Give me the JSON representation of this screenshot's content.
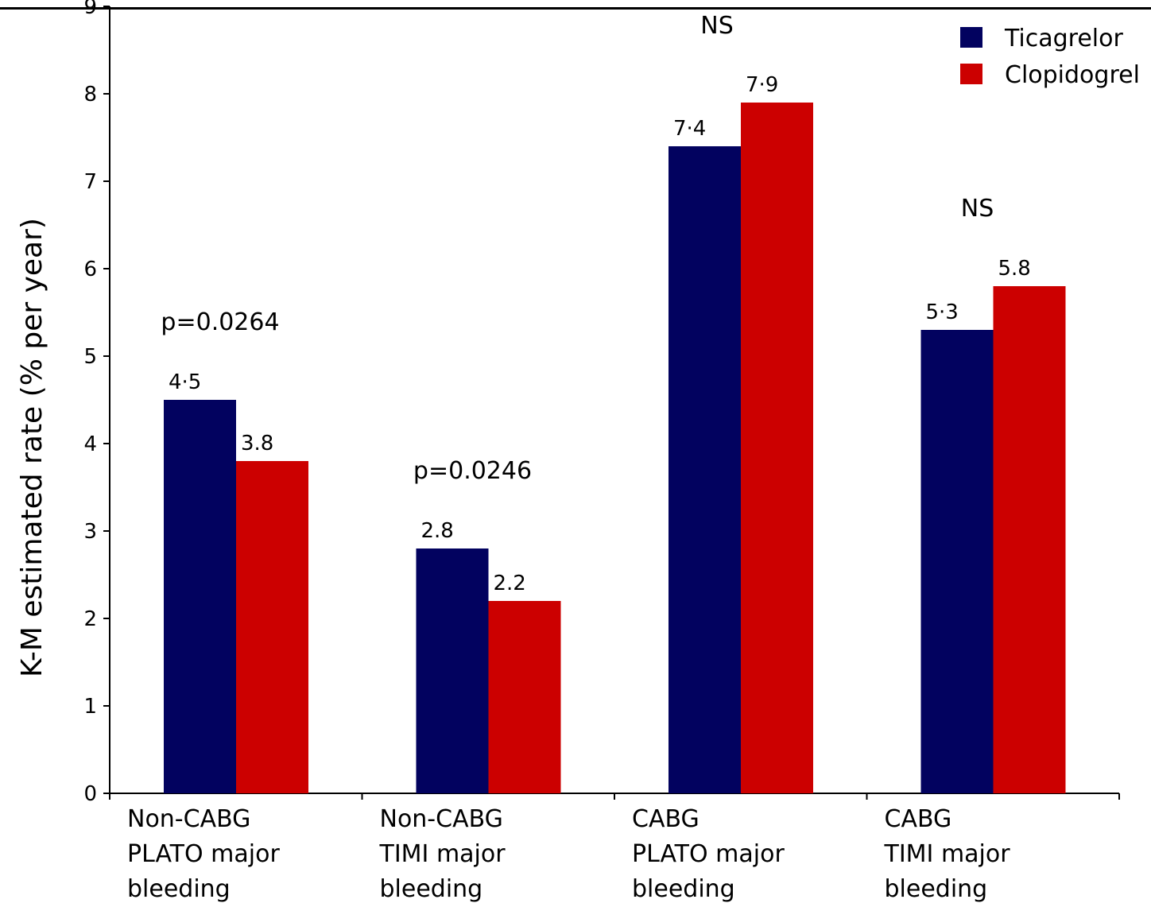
{
  "chart_data": {
    "type": "bar",
    "ylabel": "K-M estimated rate  (% per year)",
    "ylim": [
      0,
      9
    ],
    "yticks": [
      "0",
      "1",
      "2",
      "3",
      "4",
      "5",
      "6",
      "7",
      "8",
      "9"
    ],
    "categories": [
      [
        "Non-CABG",
        "PLATO major",
        "bleeding"
      ],
      [
        "Non-CABG",
        "TIMI major",
        "bleeding"
      ],
      [
        "CABG",
        "PLATO major",
        "bleeding"
      ],
      [
        "CABG",
        "TIMI major",
        "bleeding"
      ]
    ],
    "series": [
      {
        "name": "Ticagrelor",
        "color": "#02025f",
        "values": [
          4.5,
          2.8,
          7.4,
          5.3
        ],
        "labels": [
          "4·5",
          "2.8",
          "7·4",
          "5·3"
        ]
      },
      {
        "name": "Clopidogrel",
        "color": "#cc0000",
        "values": [
          3.8,
          2.2,
          7.9,
          5.8
        ],
        "labels": [
          "3.8",
          "2.2",
          "7·9",
          "5.8"
        ]
      }
    ],
    "annotations": [
      "p=0.0264",
      "p=0.0246",
      "NS",
      "NS"
    ],
    "legend_position": "top-right",
    "grid": false
  }
}
